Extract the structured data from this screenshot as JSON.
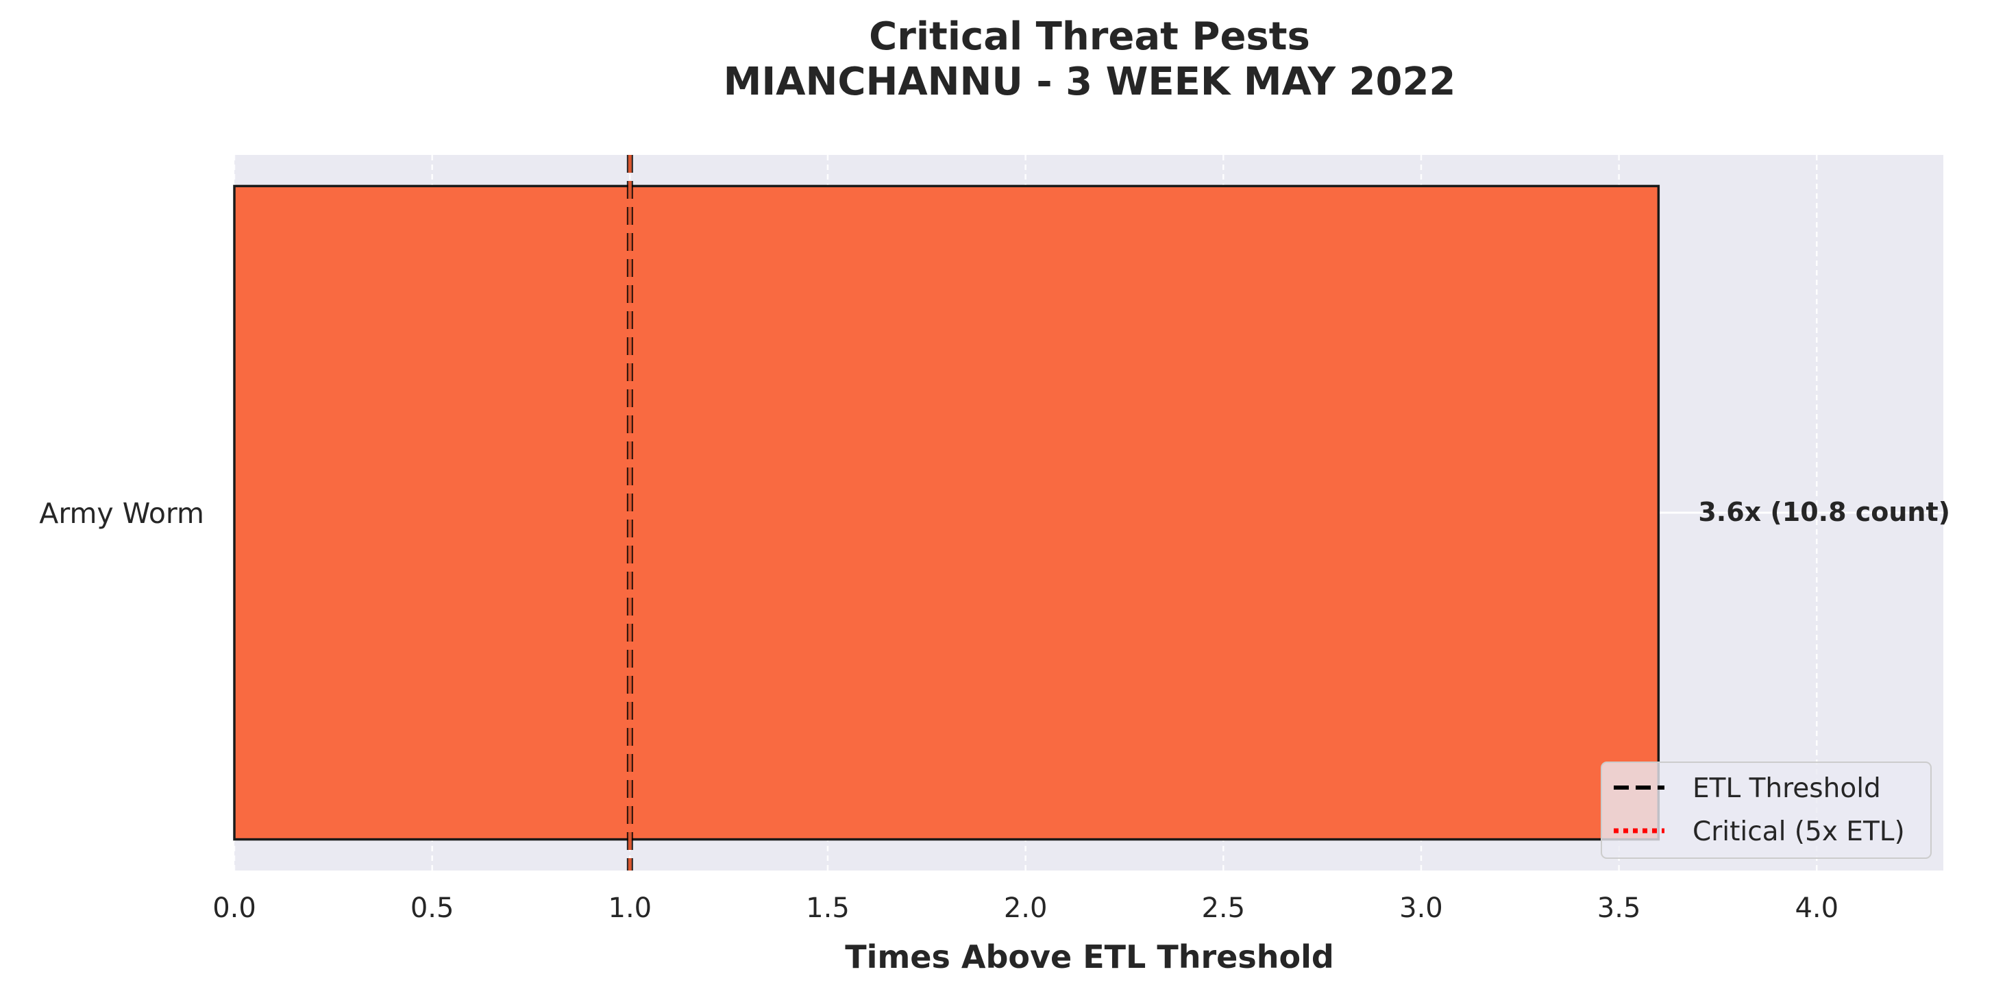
{
  "chart_data": {
    "type": "bar",
    "orientation": "horizontal",
    "title": "Critical Threat Pests",
    "subtitle": "MIANCHANNU - 3 WEEK MAY 2022",
    "xlabel": "Times Above ETL Threshold",
    "ylabel": "",
    "categories": [
      "Army Worm"
    ],
    "values": [
      3.6
    ],
    "data_labels": [
      "3.6x  (10.8 count)"
    ],
    "xlim": [
      0,
      4.32
    ],
    "xticks": [
      0.0,
      0.5,
      1.0,
      1.5,
      2.0,
      2.5,
      3.0,
      3.5,
      4.0
    ],
    "xtick_labels": [
      "0.0",
      "0.5",
      "1.0",
      "1.5",
      "2.0",
      "2.5",
      "3.0",
      "3.5",
      "4.0"
    ],
    "reference_lines": [
      {
        "name": "ETL Threshold",
        "x": 1.0,
        "style": "dashed",
        "color": "#000000"
      },
      {
        "name": "Critical (5x ETL)",
        "x": 5.0,
        "style": "dotted",
        "color": "#ff0000"
      }
    ],
    "bar_color": "#f96a41",
    "grid": true,
    "background_color": "#eaeaf2",
    "legend_placement": "lower-right",
    "legend": [
      {
        "label": "ETL Threshold",
        "style": "dashed",
        "color": "#000000"
      },
      {
        "label": "Critical (5x ETL)",
        "style": "dotted",
        "color": "#ff0000"
      }
    ]
  }
}
